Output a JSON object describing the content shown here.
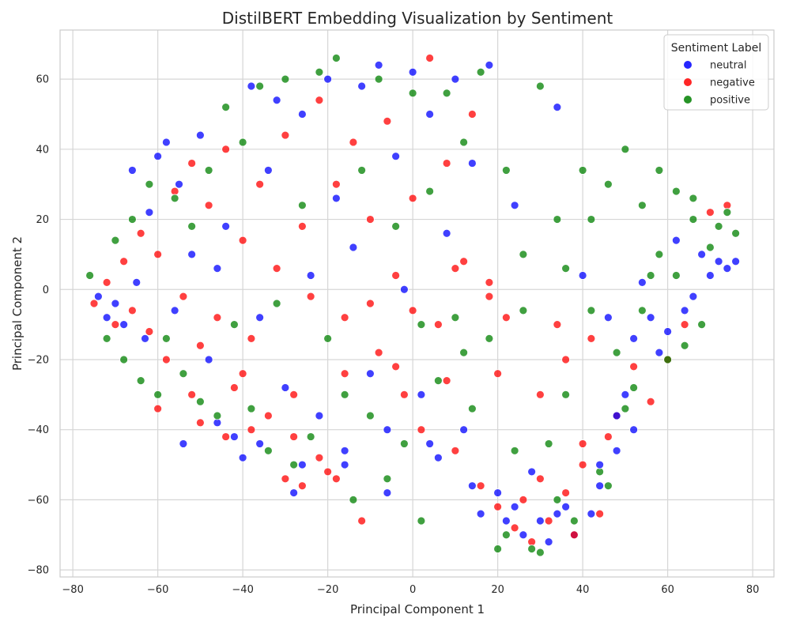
{
  "chart_data": {
    "type": "scatter",
    "title": "DistilBERT Embedding Visualization by Sentiment",
    "xlabel": "Principal Component 1",
    "ylabel": "Principal Component 2",
    "xlim": [
      -83,
      85
    ],
    "ylim": [
      -82,
      74
    ],
    "xticks": [
      -80,
      -60,
      -40,
      -20,
      0,
      20,
      40,
      60,
      80
    ],
    "yticks": [
      -80,
      -60,
      -40,
      -20,
      0,
      20,
      40,
      60
    ],
    "grid": true,
    "legend": {
      "title": "Sentiment Label",
      "placement": "top-right"
    },
    "series": [
      {
        "name": "neutral",
        "color": "#0000ff",
        "points": [
          [
            -74,
            -2
          ],
          [
            -72,
            -8
          ],
          [
            -70,
            -4
          ],
          [
            -68,
            -10
          ],
          [
            -65,
            2
          ],
          [
            -63,
            -14
          ],
          [
            -62,
            22
          ],
          [
            -60,
            38
          ],
          [
            -58,
            42
          ],
          [
            -55,
            30
          ],
          [
            -54,
            -44
          ],
          [
            -52,
            10
          ],
          [
            -50,
            44
          ],
          [
            -48,
            -20
          ],
          [
            -46,
            -38
          ],
          [
            -44,
            18
          ],
          [
            -42,
            -42
          ],
          [
            -40,
            -48
          ],
          [
            -38,
            58
          ],
          [
            -36,
            -8
          ],
          [
            -34,
            34
          ],
          [
            -32,
            54
          ],
          [
            -30,
            -28
          ],
          [
            -28,
            -58
          ],
          [
            -26,
            50
          ],
          [
            -24,
            4
          ],
          [
            -22,
            -36
          ],
          [
            -20,
            60
          ],
          [
            -18,
            26
          ],
          [
            -16,
            -50
          ],
          [
            -14,
            12
          ],
          [
            -12,
            58
          ],
          [
            -10,
            -24
          ],
          [
            -8,
            64
          ],
          [
            -6,
            -58
          ],
          [
            -4,
            38
          ],
          [
            -2,
            0
          ],
          [
            0,
            62
          ],
          [
            2,
            -30
          ],
          [
            4,
            50
          ],
          [
            6,
            -48
          ],
          [
            8,
            16
          ],
          [
            10,
            60
          ],
          [
            12,
            -40
          ],
          [
            14,
            36
          ],
          [
            16,
            -64
          ],
          [
            18,
            64
          ],
          [
            20,
            -58
          ],
          [
            22,
            -66
          ],
          [
            24,
            24
          ],
          [
            26,
            -70
          ],
          [
            28,
            -52
          ],
          [
            30,
            -66
          ],
          [
            32,
            -72
          ],
          [
            34,
            52
          ],
          [
            36,
            -62
          ],
          [
            38,
            -70
          ],
          [
            40,
            4
          ],
          [
            42,
            -64
          ],
          [
            44,
            -56
          ],
          [
            46,
            -8
          ],
          [
            48,
            -46
          ],
          [
            50,
            -30
          ],
          [
            52,
            -14
          ],
          [
            54,
            2
          ],
          [
            56,
            -8
          ],
          [
            58,
            -18
          ],
          [
            60,
            -12
          ],
          [
            62,
            14
          ],
          [
            64,
            -6
          ],
          [
            66,
            -2
          ],
          [
            68,
            10
          ],
          [
            70,
            4
          ],
          [
            72,
            8
          ],
          [
            74,
            6
          ],
          [
            76,
            8
          ],
          [
            -66,
            34
          ],
          [
            -56,
            -6
          ],
          [
            -46,
            6
          ],
          [
            -36,
            -44
          ],
          [
            -26,
            -50
          ],
          [
            -16,
            -46
          ],
          [
            -6,
            -40
          ],
          [
            4,
            -44
          ],
          [
            14,
            -56
          ],
          [
            24,
            -62
          ],
          [
            34,
            -64
          ],
          [
            44,
            -50
          ],
          [
            48,
            -36
          ],
          [
            52,
            -40
          ]
        ]
      },
      {
        "name": "negative",
        "color": "#ff0000",
        "points": [
          [
            -75,
            -4
          ],
          [
            -72,
            2
          ],
          [
            -70,
            -10
          ],
          [
            -68,
            8
          ],
          [
            -66,
            -6
          ],
          [
            -64,
            16
          ],
          [
            -62,
            -12
          ],
          [
            -60,
            10
          ],
          [
            -58,
            -20
          ],
          [
            -56,
            28
          ],
          [
            -54,
            -2
          ],
          [
            -52,
            36
          ],
          [
            -50,
            -16
          ],
          [
            -48,
            24
          ],
          [
            -46,
            -8
          ],
          [
            -44,
            40
          ],
          [
            -42,
            -28
          ],
          [
            -40,
            14
          ],
          [
            -38,
            -14
          ],
          [
            -36,
            30
          ],
          [
            -34,
            -36
          ],
          [
            -32,
            6
          ],
          [
            -30,
            44
          ],
          [
            -28,
            -42
          ],
          [
            -26,
            18
          ],
          [
            -24,
            -2
          ],
          [
            -22,
            54
          ],
          [
            -20,
            -52
          ],
          [
            -18,
            30
          ],
          [
            -16,
            -8
          ],
          [
            -14,
            42
          ],
          [
            -12,
            -66
          ],
          [
            -10,
            20
          ],
          [
            -8,
            -18
          ],
          [
            -6,
            48
          ],
          [
            -4,
            4
          ],
          [
            -2,
            -30
          ],
          [
            0,
            26
          ],
          [
            2,
            -40
          ],
          [
            4,
            66
          ],
          [
            6,
            -10
          ],
          [
            8,
            36
          ],
          [
            10,
            -46
          ],
          [
            12,
            8
          ],
          [
            14,
            50
          ],
          [
            16,
            -56
          ],
          [
            18,
            -2
          ],
          [
            20,
            -62
          ],
          [
            22,
            -8
          ],
          [
            24,
            -68
          ],
          [
            26,
            -60
          ],
          [
            28,
            -72
          ],
          [
            30,
            -54
          ],
          [
            32,
            -66
          ],
          [
            34,
            -10
          ],
          [
            36,
            -58
          ],
          [
            38,
            -70
          ],
          [
            40,
            -50
          ],
          [
            42,
            -14
          ],
          [
            44,
            -64
          ],
          [
            46,
            -42
          ],
          [
            48,
            -36
          ],
          [
            52,
            -22
          ],
          [
            56,
            -32
          ],
          [
            60,
            -20
          ],
          [
            64,
            -10
          ],
          [
            70,
            22
          ],
          [
            74,
            24
          ],
          [
            -60,
            -34
          ],
          [
            -50,
            -38
          ],
          [
            -44,
            -42
          ],
          [
            -38,
            -40
          ],
          [
            -30,
            -54
          ],
          [
            -26,
            -56
          ],
          [
            -22,
            -48
          ],
          [
            -18,
            -54
          ],
          [
            -10,
            -4
          ],
          [
            0,
            -6
          ],
          [
            10,
            6
          ],
          [
            18,
            2
          ],
          [
            -52,
            -30
          ],
          [
            -40,
            -24
          ],
          [
            -28,
            -30
          ],
          [
            -16,
            -24
          ],
          [
            -4,
            -22
          ],
          [
            8,
            -26
          ],
          [
            20,
            -24
          ],
          [
            30,
            -30
          ],
          [
            36,
            -20
          ],
          [
            40,
            -44
          ]
        ]
      },
      {
        "name": "positive",
        "color": "#008000",
        "points": [
          [
            -76,
            4
          ],
          [
            -72,
            -14
          ],
          [
            -70,
            14
          ],
          [
            -68,
            -20
          ],
          [
            -66,
            20
          ],
          [
            -64,
            -26
          ],
          [
            -62,
            30
          ],
          [
            -60,
            -30
          ],
          [
            -58,
            -14
          ],
          [
            -56,
            26
          ],
          [
            -54,
            -24
          ],
          [
            -52,
            18
          ],
          [
            -50,
            -32
          ],
          [
            -48,
            34
          ],
          [
            -46,
            -36
          ],
          [
            -44,
            52
          ],
          [
            -42,
            -10
          ],
          [
            -40,
            42
          ],
          [
            -38,
            -34
          ],
          [
            -36,
            58
          ],
          [
            -34,
            -46
          ],
          [
            -32,
            -4
          ],
          [
            -30,
            60
          ],
          [
            -28,
            -50
          ],
          [
            -26,
            24
          ],
          [
            -24,
            -42
          ],
          [
            -22,
            62
          ],
          [
            -20,
            -14
          ],
          [
            -18,
            66
          ],
          [
            -16,
            -30
          ],
          [
            -14,
            -60
          ],
          [
            -12,
            34
          ],
          [
            -10,
            -36
          ],
          [
            -8,
            60
          ],
          [
            -6,
            -54
          ],
          [
            -4,
            18
          ],
          [
            -2,
            -44
          ],
          [
            0,
            56
          ],
          [
            2,
            -66
          ],
          [
            4,
            28
          ],
          [
            6,
            -26
          ],
          [
            8,
            56
          ],
          [
            10,
            -8
          ],
          [
            12,
            42
          ],
          [
            14,
            -34
          ],
          [
            16,
            62
          ],
          [
            18,
            -14
          ],
          [
            20,
            -74
          ],
          [
            22,
            34
          ],
          [
            24,
            -46
          ],
          [
            26,
            10
          ],
          [
            28,
            -74
          ],
          [
            30,
            58
          ],
          [
            32,
            -44
          ],
          [
            34,
            20
          ],
          [
            36,
            -30
          ],
          [
            38,
            -66
          ],
          [
            40,
            34
          ],
          [
            42,
            -6
          ],
          [
            44,
            -52
          ],
          [
            46,
            30
          ],
          [
            48,
            -18
          ],
          [
            50,
            40
          ],
          [
            52,
            -28
          ],
          [
            54,
            24
          ],
          [
            56,
            4
          ],
          [
            58,
            34
          ],
          [
            60,
            -20
          ],
          [
            62,
            28
          ],
          [
            64,
            -16
          ],
          [
            66,
            20
          ],
          [
            68,
            -10
          ],
          [
            70,
            12
          ],
          [
            72,
            18
          ],
          [
            74,
            22
          ],
          [
            76,
            16
          ],
          [
            30,
            -75
          ],
          [
            22,
            -70
          ],
          [
            34,
            -60
          ],
          [
            46,
            -56
          ],
          [
            50,
            -34
          ],
          [
            54,
            -6
          ],
          [
            58,
            10
          ],
          [
            62,
            4
          ],
          [
            66,
            26
          ],
          [
            42,
            20
          ],
          [
            36,
            6
          ],
          [
            26,
            -6
          ],
          [
            12,
            -18
          ],
          [
            2,
            -10
          ]
        ]
      }
    ]
  }
}
